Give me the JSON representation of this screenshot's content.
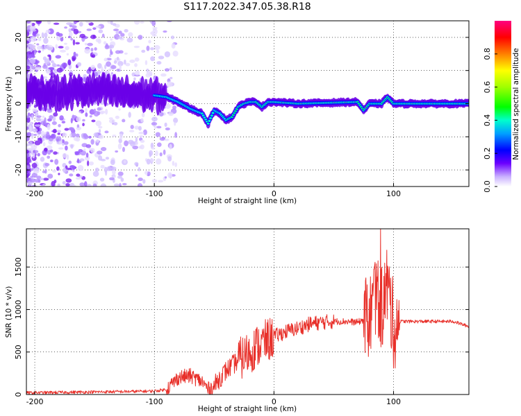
{
  "figure_title": "S117.2022.347.05.38.R18",
  "chart_data": [
    {
      "id": "spectrogram",
      "type": "heatmap",
      "title": "",
      "xlabel": "Height of straight line (km)",
      "ylabel": "Frequency (Hz)",
      "xlim": [
        -207,
        163
      ],
      "ylim": [
        -25,
        25
      ],
      "xticks": [
        -200,
        -100,
        0,
        100
      ],
      "yticks": [
        -20,
        -10,
        0,
        10,
        20
      ],
      "grid": true,
      "ridge": {
        "x": [
          -205,
          -180,
          -150,
          -120,
          -100,
          -90,
          -80,
          -70,
          -60,
          -55,
          -50,
          -45,
          -40,
          -35,
          -30,
          -25,
          -20,
          -15,
          -10,
          -5,
          0,
          20,
          50,
          70,
          75,
          80,
          90,
          95,
          100,
          130,
          163
        ],
        "y": [
          4,
          3,
          4,
          3,
          2.5,
          2,
          0.5,
          -1.5,
          -3,
          -6,
          -2,
          -3,
          -5,
          -4,
          -1,
          0,
          0.5,
          0.5,
          -1,
          0.5,
          0.5,
          0,
          0.3,
          0.5,
          -2,
          0,
          0,
          2,
          0,
          0,
          0
        ]
      },
      "colorbar": {
        "label": "Normalized spectral amplitude",
        "range": [
          0,
          1
        ],
        "ticks": [
          0.0,
          0.2,
          0.4,
          0.6,
          0.8
        ]
      }
    },
    {
      "id": "snr",
      "type": "line",
      "title": "",
      "xlabel": "Height of straight line (km)",
      "ylabel": "SNR (10 * v/v)",
      "xlim": [
        -207,
        163
      ],
      "ylim": [
        0,
        1950
      ],
      "xticks": [
        -200,
        -100,
        0,
        100
      ],
      "yticks": [
        0,
        500,
        1000,
        1500
      ],
      "grid": true,
      "series": [
        {
          "color": "#e8302a",
          "x": [
            -207,
            -180,
            -150,
            -120,
            -100,
            -90,
            -80,
            -70,
            -60,
            -55,
            -50,
            -45,
            -40,
            -35,
            -30,
            -25,
            -20,
            -15,
            -10,
            -5,
            0,
            10,
            20,
            30,
            40,
            50,
            60,
            70,
            75,
            80,
            85,
            90,
            95,
            100,
            105,
            110,
            130,
            150,
            163
          ],
          "y": [
            20,
            25,
            30,
            35,
            40,
            60,
            200,
            220,
            150,
            60,
            100,
            200,
            280,
            340,
            400,
            450,
            500,
            560,
            600,
            640,
            680,
            740,
            780,
            830,
            850,
            860,
            860,
            850,
            880,
            900,
            1200,
            1000,
            1300,
            800,
            860,
            860,
            860,
            860,
            800
          ]
        }
      ]
    }
  ]
}
